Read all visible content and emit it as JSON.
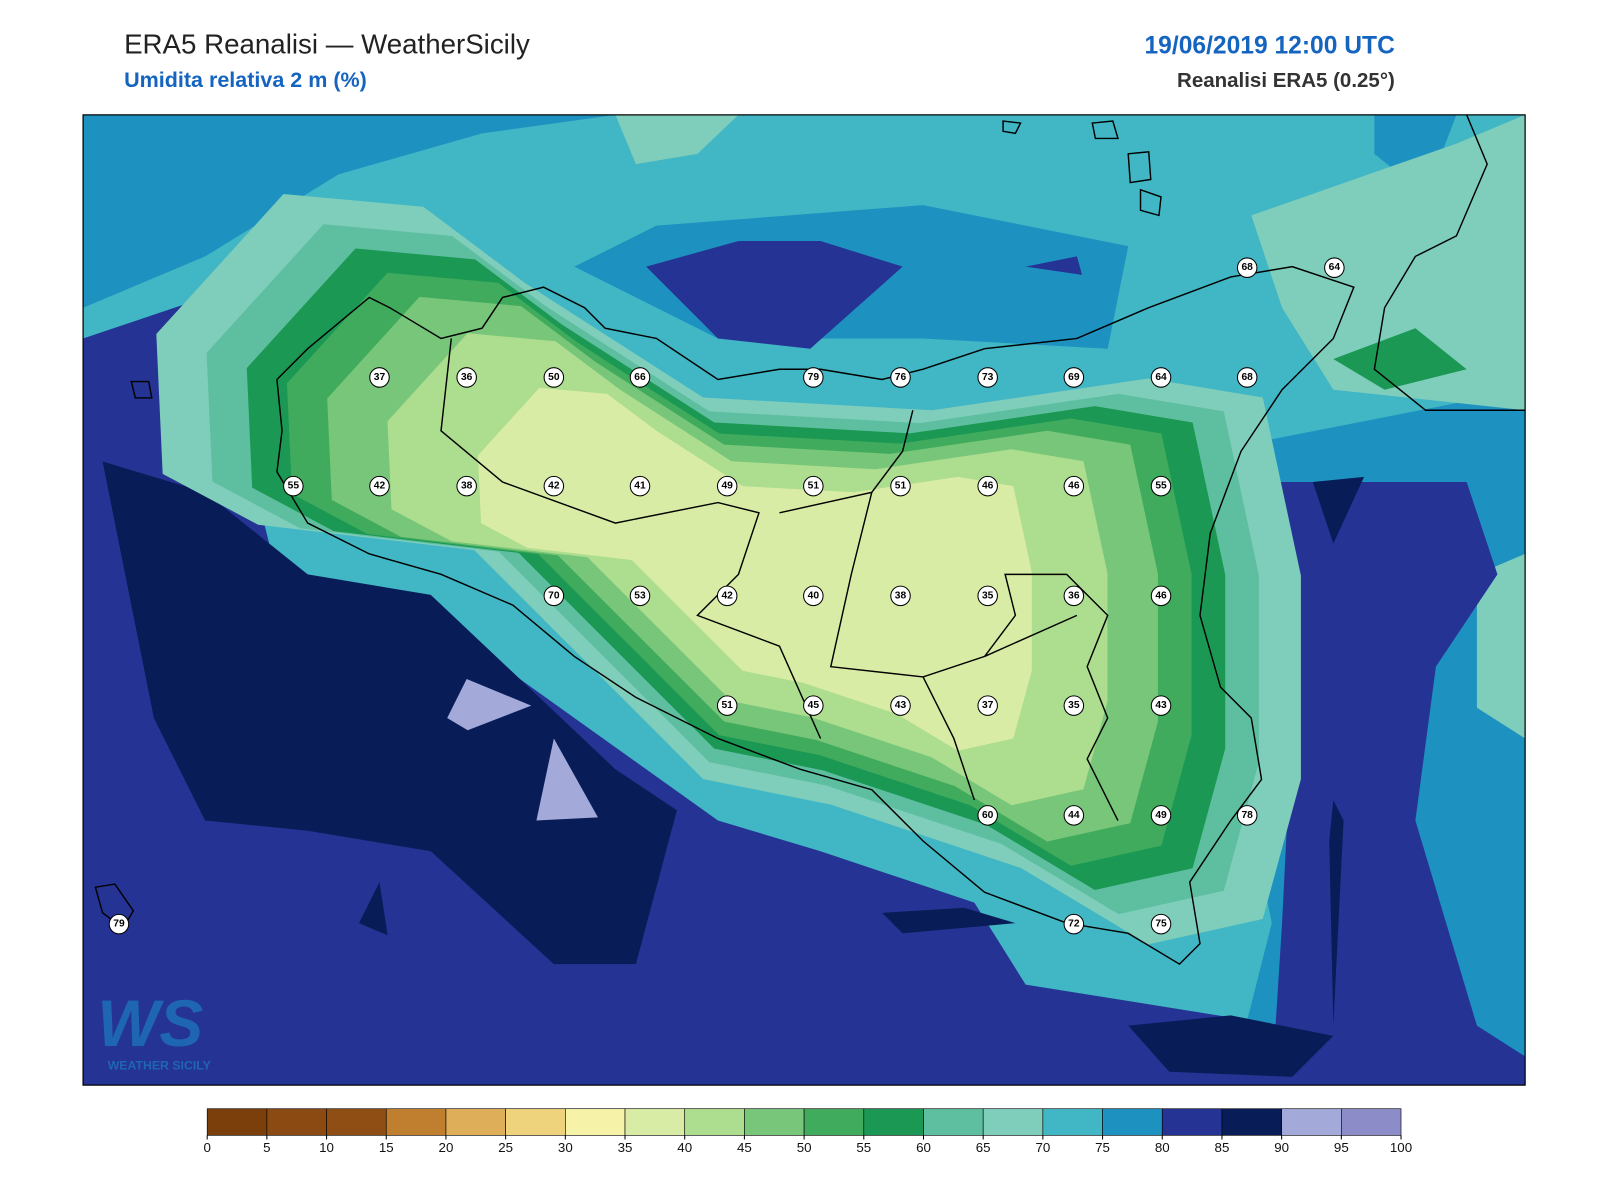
{
  "header": {
    "title": "ERA5 Reanalisi — WeatherSicily",
    "subtitle": "Umidita relativa 2 m (%)",
    "datetime": "19/06/2019 12:00 UTC",
    "source": "Reanalisi ERA5 (0.25°)"
  },
  "stations": [
    68,
    64,
    37,
    36,
    50,
    66,
    79,
    76,
    73,
    69,
    64,
    68,
    55,
    42,
    38,
    42,
    41,
    49,
    51,
    51,
    46,
    46,
    55,
    70,
    53,
    42,
    40,
    38,
    35,
    36,
    46,
    51,
    45,
    43,
    37,
    35,
    43,
    60,
    44,
    49,
    78,
    79,
    72,
    75
  ],
  "colorbar": {
    "ticks": [
      0,
      5,
      10,
      15,
      20,
      25,
      30,
      35,
      40,
      45,
      50,
      55,
      60,
      65,
      70,
      75,
      80,
      85,
      90,
      95,
      100
    ],
    "colors": [
      "#7a3f0a",
      "#8a4a12",
      "#8f4f14",
      "#c07f2e",
      "#dfae58",
      "#efd27c",
      "#f6f3a8",
      "#d9eca5",
      "#addd8e",
      "#78c679",
      "#41ab5d",
      "#1b9853",
      "#5dbf9f",
      "#7fcdbb",
      "#41b6c4",
      "#1d91c0",
      "#253494",
      "#081d58",
      "#a3a9d8",
      "#8c8cc8"
    ]
  },
  "logo": {
    "mark": "WS",
    "name": "WEATHER SICILY"
  }
}
